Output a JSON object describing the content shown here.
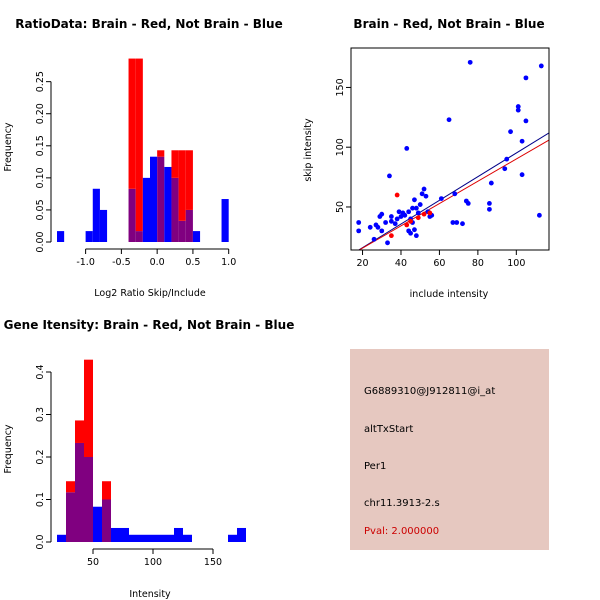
{
  "colors": {
    "red": "#ff0000",
    "blue": "#0000ff",
    "overlap": "#800080",
    "red_line": "#dd0000",
    "blue_line": "#000088",
    "panel_bg": "#e6c8c0",
    "pval_text": "#cc0000"
  },
  "chart_data": [
    {
      "id": "ratio_hist",
      "type": "bar",
      "title": "RatioData: Brain - Red, Not Brain - Blue",
      "xlabel": "Log2 Ratio Skip/Include",
      "ylabel": "Frequency",
      "xlim": [
        -1.4,
        1.2
      ],
      "ylim": [
        0,
        0.29
      ],
      "xticks": [
        "-1.0",
        "-0.5",
        "0.0",
        "0.5",
        "1.0"
      ],
      "xtick_values": [
        -1.0,
        -0.5,
        0.0,
        0.5,
        1.0
      ],
      "yticks": [
        "0.00",
        "0.05",
        "0.10",
        "0.15",
        "0.20",
        "0.25"
      ],
      "ytick_values": [
        0,
        0.05,
        0.1,
        0.15,
        0.2,
        0.25
      ],
      "bins": [
        {
          "x0": -1.4,
          "x1": -1.3,
          "red": 0,
          "blue": 0.017
        },
        {
          "x0": -1.0,
          "x1": -0.9,
          "red": 0,
          "blue": 0.017
        },
        {
          "x0": -0.9,
          "x1": -0.8,
          "red": 0,
          "blue": 0.083
        },
        {
          "x0": -0.8,
          "x1": -0.7,
          "red": 0,
          "blue": 0.05
        },
        {
          "x0": -0.4,
          "x1": -0.3,
          "red": 0.286,
          "blue": 0.083
        },
        {
          "x0": -0.3,
          "x1": -0.2,
          "red": 0.286,
          "blue": 0.017
        },
        {
          "x0": -0.2,
          "x1": -0.1,
          "red": 0,
          "blue": 0.1
        },
        {
          "x0": -0.1,
          "x1": 0.0,
          "red": 0,
          "blue": 0.133
        },
        {
          "x0": 0.0,
          "x1": 0.1,
          "red": 0.143,
          "blue": 0.133
        },
        {
          "x0": 0.1,
          "x1": 0.2,
          "red": 0,
          "blue": 0.117
        },
        {
          "x0": 0.2,
          "x1": 0.3,
          "red": 0.143,
          "blue": 0.1
        },
        {
          "x0": 0.3,
          "x1": 0.4,
          "red": 0.143,
          "blue": 0.033
        },
        {
          "x0": 0.4,
          "x1": 0.5,
          "red": 0.143,
          "blue": 0.05
        },
        {
          "x0": 0.5,
          "x1": 0.6,
          "red": 0,
          "blue": 0.017
        },
        {
          "x0": 0.9,
          "x1": 1.0,
          "red": 0,
          "blue": 0.067
        }
      ]
    },
    {
      "id": "intensity_scatter",
      "type": "scatter",
      "title": "Brain - Red, Not Brain - Blue",
      "xlabel": "include intensity",
      "ylabel": "skip intensity",
      "xlim": [
        14,
        117
      ],
      "ylim": [
        14,
        183
      ],
      "xticks": [
        "20",
        "40",
        "60",
        "80",
        "100"
      ],
      "xtick_values": [
        20,
        40,
        60,
        80,
        100
      ],
      "yticks": [
        "50",
        "100",
        "150"
      ],
      "ytick_values": [
        50,
        100,
        150
      ],
      "series": [
        {
          "name": "Not Brain",
          "color": "blue",
          "points": [
            [
              18,
              30
            ],
            [
              18,
              37
            ],
            [
              24,
              33
            ],
            [
              26,
              23
            ],
            [
              27,
              35
            ],
            [
              28,
              33
            ],
            [
              29,
              42
            ],
            [
              30,
              44
            ],
            [
              30,
              30
            ],
            [
              32,
              37
            ],
            [
              33,
              20
            ],
            [
              34,
              76
            ],
            [
              35,
              42
            ],
            [
              35,
              38
            ],
            [
              37,
              36
            ],
            [
              38,
              40
            ],
            [
              39,
              46
            ],
            [
              40,
              42
            ],
            [
              41,
              45
            ],
            [
              42,
              43
            ],
            [
              43,
              99
            ],
            [
              44,
              30
            ],
            [
              44,
              46
            ],
            [
              45,
              40
            ],
            [
              45,
              28
            ],
            [
              46,
              49
            ],
            [
              46,
              37
            ],
            [
              47,
              56
            ],
            [
              47,
              31
            ],
            [
              48,
              49
            ],
            [
              48,
              26
            ],
            [
              49,
              45
            ],
            [
              50,
              52
            ],
            [
              51,
              61
            ],
            [
              52,
              65
            ],
            [
              53,
              59
            ],
            [
              54,
              46
            ],
            [
              55,
              42
            ],
            [
              56,
              43
            ],
            [
              61,
              57
            ],
            [
              65,
              123
            ],
            [
              67,
              37
            ],
            [
              68,
              61
            ],
            [
              69,
              37
            ],
            [
              72,
              36
            ],
            [
              74,
              55
            ],
            [
              75,
              53
            ],
            [
              76,
              171
            ],
            [
              86,
              53
            ],
            [
              86,
              48
            ],
            [
              87,
              70
            ],
            [
              94,
              82
            ],
            [
              95,
              90
            ],
            [
              97,
              113
            ],
            [
              101,
              134
            ],
            [
              101,
              131
            ],
            [
              103,
              77
            ],
            [
              103,
              105
            ],
            [
              105,
              122
            ],
            [
              105,
              158
            ],
            [
              112,
              43
            ],
            [
              113,
              168
            ]
          ]
        },
        {
          "name": "Brain",
          "color": "red",
          "points": [
            [
              35,
              26
            ],
            [
              38,
              60
            ],
            [
              43,
              35
            ],
            [
              45,
              38
            ],
            [
              49,
              41
            ],
            [
              52,
              44
            ],
            [
              55,
              45
            ]
          ]
        }
      ],
      "lines": [
        {
          "name": "Not Brain fit",
          "color": "blue_line",
          "from": [
            14,
            10
          ],
          "to": [
            117,
            112
          ]
        },
        {
          "name": "Brain fit",
          "color": "red_line",
          "from": [
            14,
            10
          ],
          "to": [
            117,
            106
          ]
        }
      ]
    },
    {
      "id": "gene_hist",
      "type": "bar",
      "title": "Gene Itensity: Brain - Red, Not Brain - Blue",
      "xlabel": "Intensity",
      "ylabel": "Frequency",
      "xlim": [
        20,
        175
      ],
      "ylim": [
        0,
        0.44
      ],
      "xticks": [
        "50",
        "100",
        "150"
      ],
      "xtick_values": [
        50,
        100,
        150
      ],
      "yticks": [
        "0.0",
        "0.1",
        "0.2",
        "0.3",
        "0.4"
      ],
      "ytick_values": [
        0,
        0.1,
        0.2,
        0.3,
        0.4
      ],
      "bins": [
        {
          "x0": 20,
          "x1": 27.5,
          "red": 0,
          "blue": 0.017
        },
        {
          "x0": 27.5,
          "x1": 35,
          "red": 0.143,
          "blue": 0.117
        },
        {
          "x0": 35,
          "x1": 42.5,
          "red": 0.286,
          "blue": 0.233
        },
        {
          "x0": 42.5,
          "x1": 50,
          "red": 0.429,
          "blue": 0.2
        },
        {
          "x0": 50,
          "x1": 57.5,
          "red": 0,
          "blue": 0.083
        },
        {
          "x0": 57.5,
          "x1": 65,
          "red": 0.143,
          "blue": 0.1
        },
        {
          "x0": 65,
          "x1": 72.5,
          "red": 0,
          "blue": 0.033
        },
        {
          "x0": 72.5,
          "x1": 80,
          "red": 0,
          "blue": 0.033
        },
        {
          "x0": 80,
          "x1": 87.5,
          "red": 0,
          "blue": 0.017
        },
        {
          "x0": 87.5,
          "x1": 95,
          "red": 0,
          "blue": 0.017
        },
        {
          "x0": 95,
          "x1": 102.5,
          "red": 0,
          "blue": 0.017
        },
        {
          "x0": 102.5,
          "x1": 110,
          "red": 0,
          "blue": 0.017
        },
        {
          "x0": 110,
          "x1": 117.5,
          "red": 0,
          "blue": 0.017
        },
        {
          "x0": 117.5,
          "x1": 125,
          "red": 0,
          "blue": 0.033
        },
        {
          "x0": 125,
          "x1": 132.5,
          "red": 0,
          "blue": 0.017
        },
        {
          "x0": 162.5,
          "x1": 170,
          "red": 0,
          "blue": 0.017
        },
        {
          "x0": 170,
          "x1": 177.5,
          "red": 0,
          "blue": 0.033
        }
      ]
    }
  ],
  "info": {
    "probe_id": "G6889310@J912811@i_at",
    "event_type": "altTxStart",
    "gene": "Per1",
    "location": "chr11.3913-2.s",
    "pval": "Pval: 2.000000"
  }
}
